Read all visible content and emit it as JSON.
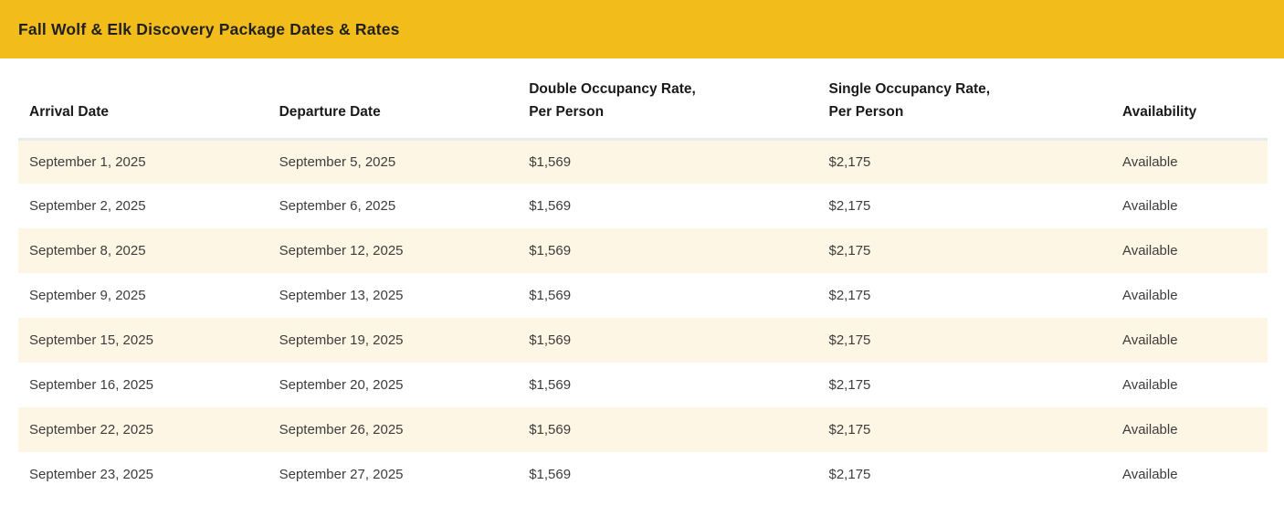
{
  "header": {
    "title": "Fall Wolf & Elk Discovery Package Dates & Rates"
  },
  "colors": {
    "header_bar": "#F2BD1B",
    "row_highlight": "#FDF6E4",
    "table_top_border": "#E9EBEE",
    "header_text": "#1A1A1A",
    "cell_text": "#3D3D3D"
  },
  "table": {
    "columns": [
      {
        "label": "Arrival Date"
      },
      {
        "label": "Departure Date"
      },
      {
        "label": "Double Occupancy Rate,\nPer Person"
      },
      {
        "label": "Single Occupancy Rate,\nPer Person"
      },
      {
        "label": "Availability"
      }
    ],
    "rows": [
      {
        "arrival": "September 1, 2025",
        "departure": "September 5, 2025",
        "double_rate": "$1,569",
        "single_rate": "$2,175",
        "availability": "Available"
      },
      {
        "arrival": "September 2, 2025",
        "departure": "September 6, 2025",
        "double_rate": "$1,569",
        "single_rate": "$2,175",
        "availability": "Available"
      },
      {
        "arrival": "September 8, 2025",
        "departure": "September 12, 2025",
        "double_rate": "$1,569",
        "single_rate": "$2,175",
        "availability": "Available"
      },
      {
        "arrival": "September 9, 2025",
        "departure": "September 13, 2025",
        "double_rate": "$1,569",
        "single_rate": "$2,175",
        "availability": "Available"
      },
      {
        "arrival": "September 15, 2025",
        "departure": "September 19, 2025",
        "double_rate": "$1,569",
        "single_rate": "$2,175",
        "availability": "Available"
      },
      {
        "arrival": "September 16, 2025",
        "departure": "September 20, 2025",
        "double_rate": "$1,569",
        "single_rate": "$2,175",
        "availability": "Available"
      },
      {
        "arrival": "September 22, 2025",
        "departure": "September 26, 2025",
        "double_rate": "$1,569",
        "single_rate": "$2,175",
        "availability": "Available"
      },
      {
        "arrival": "September 23, 2025",
        "departure": "September 27, 2025",
        "double_rate": "$1,569",
        "single_rate": "$2,175",
        "availability": "Available"
      }
    ]
  }
}
